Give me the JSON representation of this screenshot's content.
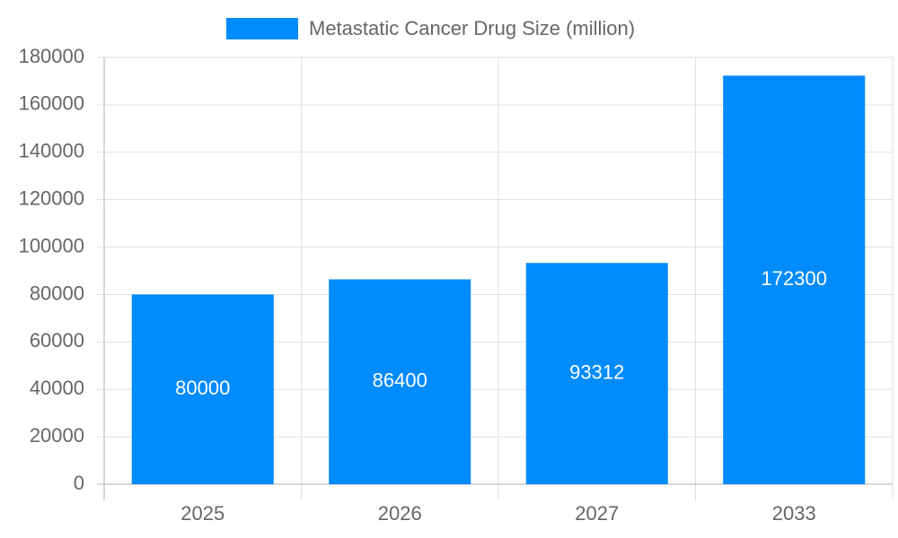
{
  "chart_data": {
    "type": "bar",
    "categories": [
      "2025",
      "2026",
      "2027",
      "2033"
    ],
    "series": [
      {
        "name": "Metastatic Cancer Drug Size (million)",
        "color": "#018bfd",
        "values": [
          80000,
          86400,
          93312,
          172300
        ]
      }
    ],
    "ylim": [
      0,
      180000
    ],
    "yticks": [
      0,
      20000,
      40000,
      60000,
      80000,
      100000,
      120000,
      140000,
      160000,
      180000
    ],
    "grid": true,
    "legend": "top",
    "data_labels": true
  }
}
